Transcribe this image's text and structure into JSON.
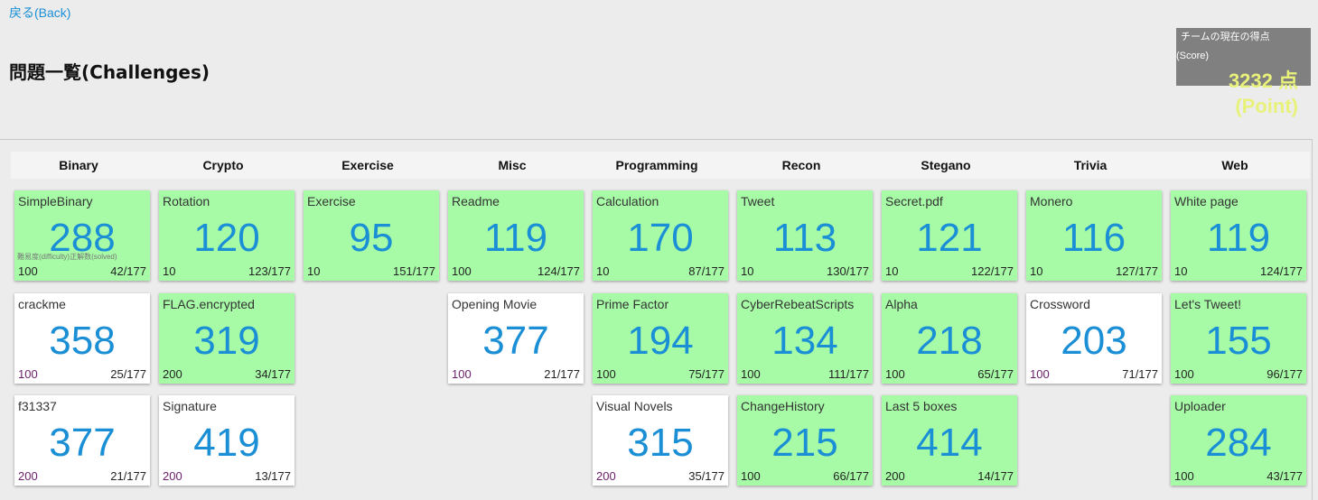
{
  "back_link": "戻る(Back)",
  "page_title": "問題一覧(Challenges)",
  "score": {
    "label_line1": "チームの現在の得点",
    "label_line2": "(Score)",
    "value": "3232 点",
    "unit": "(Point)"
  },
  "categories": [
    "Binary",
    "Crypto",
    "Exercise",
    "Misc",
    "Programming",
    "Recon",
    "Stegano",
    "Trivia",
    "Web"
  ],
  "first_card_note": "難易度(difficulty)正解数(solved)",
  "colors": {
    "solved_bg": "#a7fba7",
    "unsolved_bg": "#ffffff",
    "number": "#1a8fd6"
  },
  "challenges": [
    {
      "col": 0,
      "row": 0,
      "name": "SimpleBinary",
      "num": "288",
      "points": "100",
      "solves": "42/177",
      "solved": true
    },
    {
      "col": 0,
      "row": 1,
      "name": "crackme",
      "num": "358",
      "points": "100",
      "solves": "25/177",
      "solved": false
    },
    {
      "col": 0,
      "row": 2,
      "name": "f31337",
      "num": "377",
      "points": "200",
      "solves": "21/177",
      "solved": false
    },
    {
      "col": 1,
      "row": 0,
      "name": "Rotation",
      "num": "120",
      "points": "10",
      "solves": "123/177",
      "solved": true
    },
    {
      "col": 1,
      "row": 1,
      "name": "FLAG.encrypted",
      "num": "319",
      "points": "200",
      "solves": "34/177",
      "solved": true
    },
    {
      "col": 1,
      "row": 2,
      "name": "Signature",
      "num": "419",
      "points": "200",
      "solves": "13/177",
      "solved": false
    },
    {
      "col": 2,
      "row": 0,
      "name": "Exercise",
      "num": "95",
      "points": "10",
      "solves": "151/177",
      "solved": true
    },
    {
      "col": 3,
      "row": 0,
      "name": "Readme",
      "num": "119",
      "points": "100",
      "solves": "124/177",
      "solved": true
    },
    {
      "col": 3,
      "row": 1,
      "name": "Opening Movie",
      "num": "377",
      "points": "100",
      "solves": "21/177",
      "solved": false
    },
    {
      "col": 4,
      "row": 0,
      "name": "Calculation",
      "num": "170",
      "points": "10",
      "solves": "87/177",
      "solved": true
    },
    {
      "col": 4,
      "row": 1,
      "name": "Prime Factor",
      "num": "194",
      "points": "100",
      "solves": "75/177",
      "solved": true
    },
    {
      "col": 4,
      "row": 2,
      "name": "Visual Novels",
      "num": "315",
      "points": "200",
      "solves": "35/177",
      "solved": false
    },
    {
      "col": 5,
      "row": 0,
      "name": "Tweet",
      "num": "113",
      "points": "10",
      "solves": "130/177",
      "solved": true
    },
    {
      "col": 5,
      "row": 1,
      "name": "CyberRebeatScripts",
      "num": "134",
      "points": "100",
      "solves": "111/177",
      "solved": true
    },
    {
      "col": 5,
      "row": 2,
      "name": "ChangeHistory",
      "num": "215",
      "points": "100",
      "solves": "66/177",
      "solved": true
    },
    {
      "col": 6,
      "row": 0,
      "name": "Secret.pdf",
      "num": "121",
      "points": "10",
      "solves": "122/177",
      "solved": true
    },
    {
      "col": 6,
      "row": 1,
      "name": "Alpha",
      "num": "218",
      "points": "100",
      "solves": "65/177",
      "solved": true
    },
    {
      "col": 6,
      "row": 2,
      "name": "Last 5 boxes",
      "num": "414",
      "points": "200",
      "solves": "14/177",
      "solved": true
    },
    {
      "col": 7,
      "row": 0,
      "name": "Monero",
      "num": "116",
      "points": "10",
      "solves": "127/177",
      "solved": true
    },
    {
      "col": 7,
      "row": 1,
      "name": "Crossword",
      "num": "203",
      "points": "100",
      "solves": "71/177",
      "solved": false
    },
    {
      "col": 8,
      "row": 0,
      "name": "White page",
      "num": "119",
      "points": "10",
      "solves": "124/177",
      "solved": true
    },
    {
      "col": 8,
      "row": 1,
      "name": "Let's Tweet!",
      "num": "155",
      "points": "100",
      "solves": "96/177",
      "solved": true
    },
    {
      "col": 8,
      "row": 2,
      "name": "Uploader",
      "num": "284",
      "points": "100",
      "solves": "43/177",
      "solved": true
    }
  ]
}
